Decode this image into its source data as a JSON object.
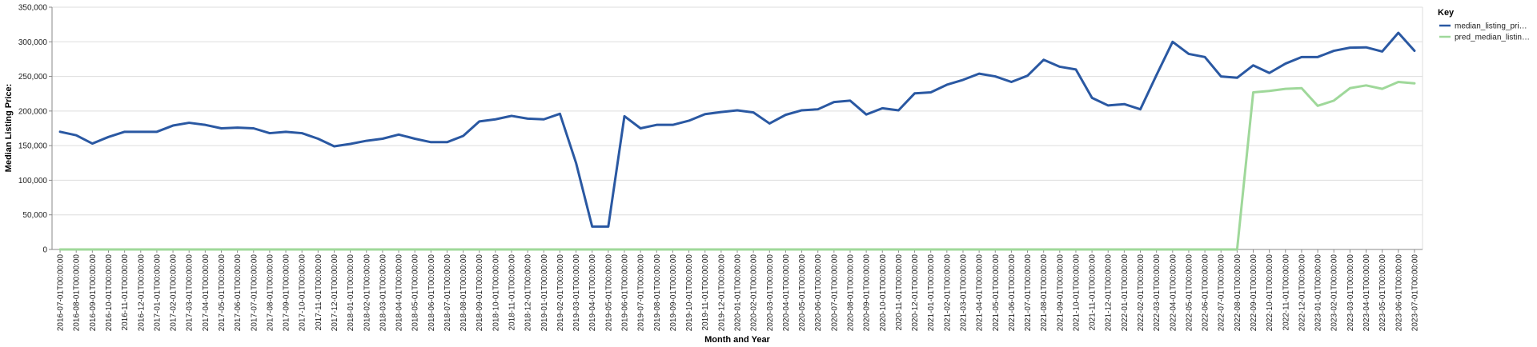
{
  "chart_data": {
    "type": "line",
    "title": "",
    "xlabel": "Month and Year",
    "ylabel": "Median Listing Price:",
    "ylim": [
      0,
      350000
    ],
    "yticks": [
      "0",
      "50,000",
      "100,000",
      "150,000",
      "200,000",
      "250,000",
      "300,000",
      "350,000"
    ],
    "grid": true,
    "legend": {
      "title": "Key",
      "position": "right"
    },
    "x": [
      "2016-07-01T00:00:00",
      "2016-08-01T00:00:00",
      "2016-09-01T00:00:00",
      "2016-10-01T00:00:00",
      "2016-11-01T00:00:00",
      "2016-12-01T00:00:00",
      "2017-01-01T00:00:00",
      "2017-02-01T00:00:00",
      "2017-03-01T00:00:00",
      "2017-04-01T00:00:00",
      "2017-05-01T00:00:00",
      "2017-06-01T00:00:00",
      "2017-07-01T00:00:00",
      "2017-08-01T00:00:00",
      "2017-09-01T00:00:00",
      "2017-10-01T00:00:00",
      "2017-11-01T00:00:00",
      "2017-12-01T00:00:00",
      "2018-01-01T00:00:00",
      "2018-02-01T00:00:00",
      "2018-03-01T00:00:00",
      "2018-04-01T00:00:00",
      "2018-05-01T00:00:00",
      "2018-06-01T00:00:00",
      "2018-07-01T00:00:00",
      "2018-08-01T00:00:00",
      "2018-09-01T00:00:00",
      "2018-10-01T00:00:00",
      "2018-11-01T00:00:00",
      "2018-12-01T00:00:00",
      "2019-01-01T00:00:00",
      "2019-02-01T00:00:00",
      "2019-03-01T00:00:00",
      "2019-04-01T00:00:00",
      "2019-05-01T00:00:00",
      "2019-06-01T00:00:00",
      "2019-07-01T00:00:00",
      "2019-08-01T00:00:00",
      "2019-09-01T00:00:00",
      "2019-10-01T00:00:00",
      "2019-11-01T00:00:00",
      "2019-12-01T00:00:00",
      "2020-01-01T00:00:00",
      "2020-02-01T00:00:00",
      "2020-03-01T00:00:00",
      "2020-04-01T00:00:00",
      "2020-05-01T00:00:00",
      "2020-06-01T00:00:00",
      "2020-07-01T00:00:00",
      "2020-08-01T00:00:00",
      "2020-09-01T00:00:00",
      "2020-10-01T00:00:00",
      "2020-11-01T00:00:00",
      "2020-12-01T00:00:00",
      "2021-01-01T00:00:00",
      "2021-02-01T00:00:00",
      "2021-03-01T00:00:00",
      "2021-04-01T00:00:00",
      "2021-05-01T00:00:00",
      "2021-06-01T00:00:00",
      "2021-07-01T00:00:00",
      "2021-08-01T00:00:00",
      "2021-09-01T00:00:00",
      "2021-10-01T00:00:00",
      "2021-11-01T00:00:00",
      "2021-12-01T00:00:00",
      "2022-01-01T00:00:00",
      "2022-02-01T00:00:00",
      "2022-03-01T00:00:00",
      "2022-04-01T00:00:00",
      "2022-05-01T00:00:00",
      "2022-06-01T00:00:00",
      "2022-07-01T00:00:00",
      "2022-08-01T00:00:00",
      "2022-09-01T00:00:00",
      "2022-10-01T00:00:00",
      "2022-11-01T00:00:00",
      "2022-12-01T00:00:00",
      "2023-01-01T00:00:00",
      "2023-02-01T00:00:00",
      "2023-03-01T00:00:00",
      "2023-04-01T00:00:00",
      "2023-05-01T00:00:00",
      "2023-06-01T00:00:00",
      "2023-07-01T00:00:00"
    ],
    "x_tick_labels": [
      "2016-07-01T00:00:00",
      "2016-08-01T00:00:00",
      "2016-09-01T00:00:00",
      "2016-10-01T00:00:00",
      "2016-11-01T00:00:00",
      "2016-12-01T00:00:00",
      "2017-01-01T00:00:00",
      "2017-02-01T00:00:00",
      "2017-03-01T00:00:00",
      "2017-04-01T00:00:00",
      "2017-05-01T00:00:00",
      "2017-06-01T00:00:00",
      "2017-07-01T00:00:00",
      "2017-08-01T00:00:00",
      "2017-09-01T00:00:00",
      "2017-10-01T00:00:00",
      "2017-11-01T00:00:00",
      "2017-12-01T00:00:00",
      "2018-01-01T00:00:00",
      "2018-02-01T00:00:00",
      "2018-03-01T00:00:00",
      "2018-04-01T00:00:00",
      "2018-05-01T00:00:00",
      "2018-06-01T00:00:00",
      "2018-07-01T00:00:00",
      "2018-08-01T00:00:00",
      "2018-09-01T00:00:00",
      "2018-10-01T00:00:00",
      "2018-11-01T00:00:00",
      "2018-12-01T00:00:00",
      "2019-01-01T00:00:00",
      "2019-02-01T00:00:00",
      "2019-03-01T00:00:00",
      "2019-04-01T00:00:00",
      "2019-05-01T00:00:00",
      "2019-06-01T00:00:00",
      "2019-07-01T00:00:00",
      "2019-08-01T00:00:00",
      "2019-09-01T00:00:00",
      "2019-10-01T00:00:00",
      "2019-11-01T00:00:00",
      "2019-12-01T00:00:00",
      "2020-01-01T00:00:00",
      "2020-02-01T00:00:00",
      "2020-03-01T00:00:00",
      "2020-04-01T00:00:00",
      "2020-05-01T00:00:00",
      "2020-06-01T00:00:00",
      "2020-07-01T00:00:00",
      "2020-08-01T00:00:00",
      "2020-09-01T00:00:00",
      "2020-10-01T00:00:00",
      "2020-11-01T00:00:00",
      "2020-12-01T00:00:00",
      "2021-01-01T00:00:00",
      "2021-02-01T00:00:00",
      "2021-03-01T00:00:00",
      "2021-04-01T00:00:00",
      "2021-05-01T00:00:00",
      "2021-06-01T00:00:00",
      "2021-07-01T00:00:00",
      "2021-08-01T00:00:00",
      "2021-09-01T00:00:00",
      "2021-10-01T00:00:00",
      "2021-11-01T00:00:00",
      "2021-12-01T00:00:00",
      "2022-01-01T00:00:00",
      "2022-02-01T00:00:00",
      "2022-03-01T00:00:00",
      "2022-04-01T00:00:00",
      "2022-05-01T00:00:00",
      "2022-06-01T00:00:00",
      "2022-07-01T00:00:00",
      "2022-08-01T00:00:00",
      "2022-09-01T00:00:00",
      "2022-10-01T00:00:00",
      "2022-11-01T00:00:00",
      "2022-12-01T00:00:00",
      "2023-01-01T00:00:00",
      "2023-02-01T00:00:00",
      "2023-03-01T00:00:00",
      "2023-04-01T00:00:00",
      "2023-05-01T00:00:00",
      "2023-06-01T00:00:00",
      "2023-07-01T00:00:00"
    ],
    "series": [
      {
        "name": "median_listing_pri…",
        "color": "#2a58a2",
        "values": [
          170000,
          165000,
          153000,
          162500,
          170000,
          170000,
          170000,
          179000,
          183000,
          180000,
          175000,
          176000,
          175000,
          168000,
          170000,
          168000,
          160000,
          149000,
          152500,
          157000,
          160000,
          166000,
          160000,
          155000,
          155000,
          164000,
          185000,
          188000,
          193000,
          189000,
          188000,
          196000,
          125000,
          33000,
          33000,
          192500,
          175000,
          180000,
          180000,
          186000,
          195500,
          198500,
          201000,
          198000,
          182000,
          194500,
          201000,
          202500,
          213000,
          215000,
          195000,
          204000,
          201000,
          225500,
          227000,
          238000,
          245000,
          254000,
          250000,
          242000,
          251000,
          274000,
          264000,
          260000,
          219000,
          208000,
          210000,
          202500,
          252000,
          300000,
          282500,
          278000,
          250000,
          248000,
          266000,
          255000,
          268500,
          278000,
          278000,
          287000,
          291500,
          292000,
          286000,
          313000,
          287000
        ]
      },
      {
        "name": "pred_median_listin…",
        "color": "#9fd89a",
        "values": [
          0,
          0,
          0,
          0,
          0,
          0,
          0,
          0,
          0,
          0,
          0,
          0,
          0,
          0,
          0,
          0,
          0,
          0,
          0,
          0,
          0,
          0,
          0,
          0,
          0,
          0,
          0,
          0,
          0,
          0,
          0,
          0,
          0,
          0,
          0,
          0,
          0,
          0,
          0,
          0,
          0,
          0,
          0,
          0,
          0,
          0,
          0,
          0,
          0,
          0,
          0,
          0,
          0,
          0,
          0,
          0,
          0,
          0,
          0,
          0,
          0,
          0,
          0,
          0,
          0,
          0,
          0,
          0,
          0,
          0,
          0,
          0,
          0,
          0,
          227000,
          229000,
          232000,
          233000,
          207500,
          215000,
          233000,
          237000,
          232000,
          242000,
          240000
        ]
      }
    ]
  }
}
